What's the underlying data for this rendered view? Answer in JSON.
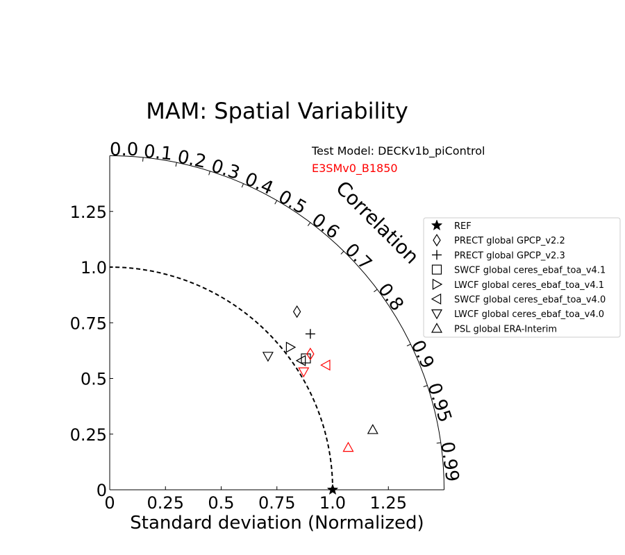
{
  "chart_data": {
    "type": "scatter",
    "subtype": "taylor_diagram",
    "title": "MAM: Spatial Variability",
    "xlabel": "Standard deviation (Normalized)",
    "ylabel": "",
    "xlim": [
      0,
      1.5
    ],
    "ylim": [
      0,
      1.5
    ],
    "std_ticks": [
      "0",
      "0.25",
      "0.5",
      "0.75",
      "1.0",
      "1.25"
    ],
    "correlation_label": "Correlation",
    "correlation_ticks": [
      {
        "value": 0.0,
        "label": "0.0"
      },
      {
        "value": 0.1,
        "label": "0.1"
      },
      {
        "value": 0.2,
        "label": "0.2"
      },
      {
        "value": 0.3,
        "label": "0.3"
      },
      {
        "value": 0.4,
        "label": "0.4"
      },
      {
        "value": 0.5,
        "label": "0.5"
      },
      {
        "value": 0.6,
        "label": "0.6"
      },
      {
        "value": 0.7,
        "label": "0.7"
      },
      {
        "value": 0.8,
        "label": "0.8"
      },
      {
        "value": 0.9,
        "label": "0.9"
      },
      {
        "value": 0.95,
        "label": "0.95"
      },
      {
        "value": 0.99,
        "label": "0.99"
      }
    ],
    "reference_std": 1.0,
    "test_model_label": "Test Model: DECKv1b_piControl",
    "models": [
      {
        "name": "DECKv1b_piControl",
        "color": "#000000"
      },
      {
        "name": "E3SMv0_B1850",
        "color": "#ff0000"
      }
    ],
    "legend_position": "right",
    "legend": [
      {
        "label": "REF",
        "marker": "star"
      },
      {
        "label": "PRECT global GPCP_v2.2",
        "marker": "diamond"
      },
      {
        "label": "PRECT global GPCP_v2.3",
        "marker": "plus"
      },
      {
        "label": "SWCF global ceres_ebaf_toa_v4.1",
        "marker": "square"
      },
      {
        "label": "LWCF global ceres_ebaf_toa_v4.1",
        "marker": "triangle-right"
      },
      {
        "label": "SWCF global ceres_ebaf_toa_v4.0",
        "marker": "triangle-left"
      },
      {
        "label": "LWCF global ceres_ebaf_toa_v4.0",
        "marker": "triangle-down"
      },
      {
        "label": "PSL global ERA-Interim",
        "marker": "triangle-up"
      }
    ],
    "points": [
      {
        "marker": "star",
        "model": 0,
        "x": 1.0,
        "y": 0.0
      },
      {
        "marker": "diamond",
        "model": 0,
        "x": 0.84,
        "y": 0.8
      },
      {
        "marker": "plus",
        "model": 0,
        "x": 0.9,
        "y": 0.7
      },
      {
        "marker": "square",
        "model": 0,
        "x": 0.88,
        "y": 0.59
      },
      {
        "marker": "triangle-right",
        "model": 0,
        "x": 0.81,
        "y": 0.64
      },
      {
        "marker": "triangle-left",
        "model": 0,
        "x": 0.86,
        "y": 0.58
      },
      {
        "marker": "triangle-down",
        "model": 0,
        "x": 0.71,
        "y": 0.6
      },
      {
        "marker": "triangle-up",
        "model": 0,
        "x": 1.18,
        "y": 0.27
      },
      {
        "marker": "diamond",
        "model": 1,
        "x": 0.9,
        "y": 0.61
      },
      {
        "marker": "triangle-left",
        "model": 1,
        "x": 0.97,
        "y": 0.56
      },
      {
        "marker": "triangle-down",
        "model": 1,
        "x": 0.87,
        "y": 0.53
      },
      {
        "marker": "triangle-up",
        "model": 1,
        "x": 1.07,
        "y": 0.19
      }
    ]
  }
}
